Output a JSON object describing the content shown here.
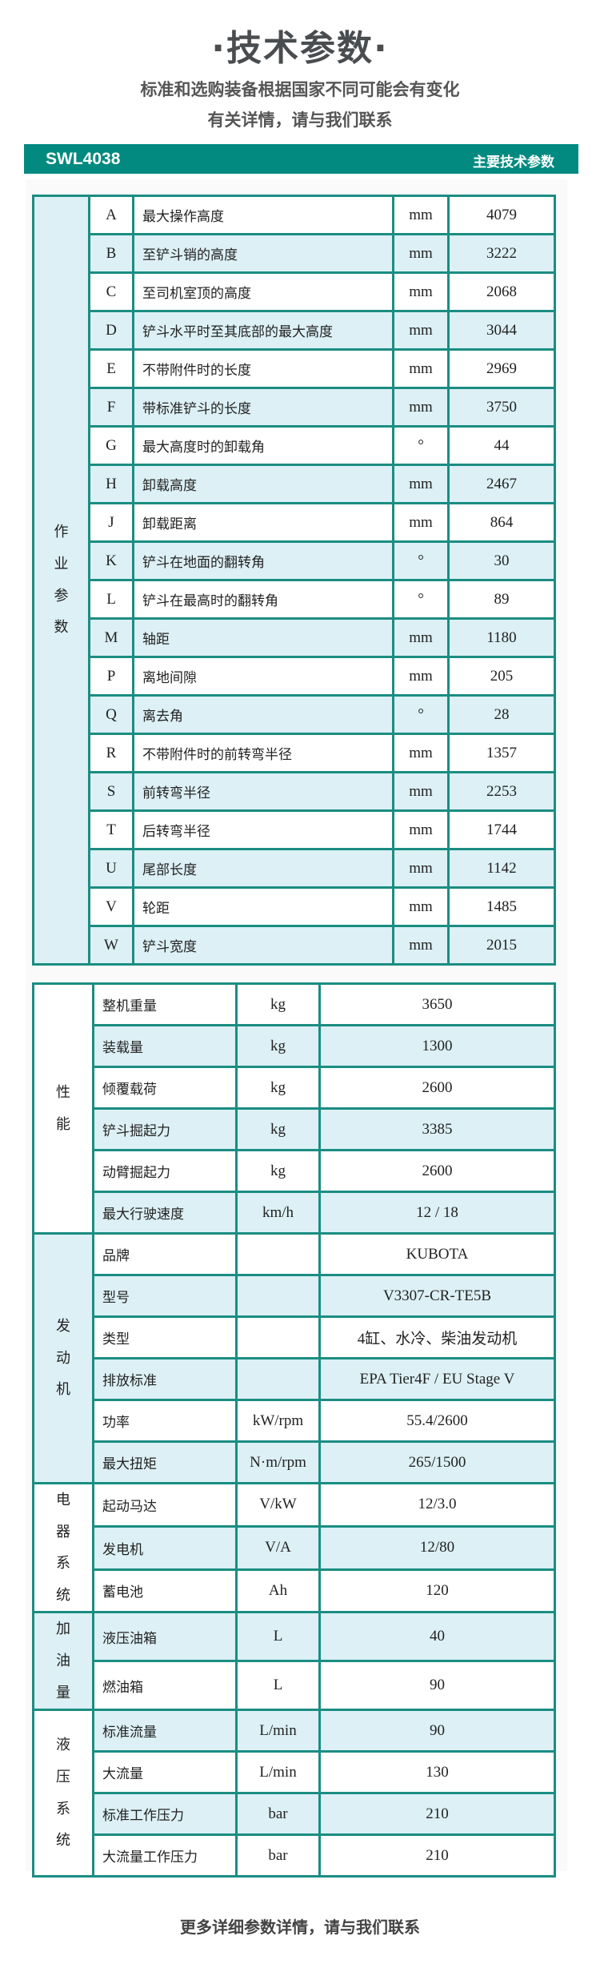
{
  "header": {
    "title": "·技术参数·",
    "subtitle_line1": "标准和选购装备根据国家不同可能会有变化",
    "subtitle_line2": "有关详情，请与我们联系"
  },
  "model_bar": {
    "model": "SWL4038",
    "label": "主要技术参数"
  },
  "colors": {
    "accent": "#038a80",
    "stripe": "#dcf0f5",
    "border": "#1b8d82"
  },
  "work_table": {
    "group": "作业参数",
    "rows": [
      {
        "code": "A",
        "name": "最大操作高度",
        "unit": "mm",
        "value": "4079"
      },
      {
        "code": "B",
        "name": "至铲斗销的高度",
        "unit": "mm",
        "value": "3222"
      },
      {
        "code": "C",
        "name": "至司机室顶的高度",
        "unit": "mm",
        "value": "2068"
      },
      {
        "code": "D",
        "name": "铲斗水平时至其底部的最大高度",
        "unit": "mm",
        "value": "3044"
      },
      {
        "code": "E",
        "name": "不带附件时的长度",
        "unit": "mm",
        "value": "2969"
      },
      {
        "code": "F",
        "name": "带标准铲斗的长度",
        "unit": "mm",
        "value": "3750"
      },
      {
        "code": "G",
        "name": "最大高度时的卸载角",
        "unit": "°",
        "value": "44"
      },
      {
        "code": "H",
        "name": "卸载高度",
        "unit": "mm",
        "value": "2467"
      },
      {
        "code": "J",
        "name": "卸载距离",
        "unit": "mm",
        "value": "864"
      },
      {
        "code": "K",
        "name": "铲斗在地面的翻转角",
        "unit": "°",
        "value": "30"
      },
      {
        "code": "L",
        "name": "铲斗在最高时的翻转角",
        "unit": "°",
        "value": "89"
      },
      {
        "code": "M",
        "name": "轴距",
        "unit": "mm",
        "value": "1180"
      },
      {
        "code": "P",
        "name": "离地间隙",
        "unit": "mm",
        "value": "205"
      },
      {
        "code": "Q",
        "name": "离去角",
        "unit": "°",
        "value": "28"
      },
      {
        "code": "R",
        "name": "不带附件时的前转弯半径",
        "unit": "mm",
        "value": "1357"
      },
      {
        "code": "S",
        "name": "前转弯半径",
        "unit": "mm",
        "value": "2253"
      },
      {
        "code": "T",
        "name": "后转弯半径",
        "unit": "mm",
        "value": "1744"
      },
      {
        "code": "U",
        "name": "尾部长度",
        "unit": "mm",
        "value": "1142"
      },
      {
        "code": "V",
        "name": "轮距",
        "unit": "mm",
        "value": "1485"
      },
      {
        "code": "W",
        "name": "铲斗宽度",
        "unit": "mm",
        "value": "2015"
      }
    ]
  },
  "spec_table": {
    "groups": [
      {
        "label": "性能",
        "tone": "white",
        "rows": [
          {
            "name": "整机重量",
            "unit": "kg",
            "value": "3650"
          },
          {
            "name": "装载量",
            "unit": "kg",
            "value": "1300"
          },
          {
            "name": "倾覆载荷",
            "unit": "kg",
            "value": "2600"
          },
          {
            "name": "铲斗掘起力",
            "unit": "kg",
            "value": "3385"
          },
          {
            "name": "动臂掘起力",
            "unit": "kg",
            "value": "2600"
          },
          {
            "name": "最大行驶速度",
            "unit": "km/h",
            "value": "12 / 18"
          }
        ]
      },
      {
        "label": "发动机",
        "tone": "blue",
        "rows": [
          {
            "name": "品牌",
            "unit": "",
            "value": "KUBOTA"
          },
          {
            "name": "型号",
            "unit": "",
            "value": "V3307-CR-TE5B"
          },
          {
            "name": "类型",
            "unit": "",
            "value": "4缸、水冷、柴油发动机"
          },
          {
            "name": "排放标准",
            "unit": "",
            "value": "EPA Tier4F / EU Stage V"
          },
          {
            "name": "功率",
            "unit": "kW/rpm",
            "value": "55.4/2600"
          },
          {
            "name": "最大扭矩",
            "unit": "N·m/rpm",
            "value": "265/1500"
          }
        ]
      },
      {
        "label": "电器系统",
        "tone": "white",
        "rows": [
          {
            "name": "起动马达",
            "unit": "V/kW",
            "value": "12/3.0"
          },
          {
            "name": "发电机",
            "unit": "V/A",
            "value": "12/80"
          },
          {
            "name": "蓄电池",
            "unit": "Ah",
            "value": "120"
          }
        ]
      },
      {
        "label": "加油量",
        "tone": "blue",
        "rows": [
          {
            "name": "液压油箱",
            "unit": "L",
            "value": "40"
          },
          {
            "name": "燃油箱",
            "unit": "L",
            "value": "90"
          }
        ]
      },
      {
        "label": "液压系统",
        "tone": "white",
        "rows": [
          {
            "name": "标准流量",
            "unit": "L/min",
            "value": "90"
          },
          {
            "name": "大流量",
            "unit": "L/min",
            "value": "130"
          },
          {
            "name": "标准工作压力",
            "unit": "bar",
            "value": "210"
          },
          {
            "name": "大流量工作压力",
            "unit": "bar",
            "value": "210"
          }
        ]
      }
    ]
  },
  "footer": {
    "text": "更多详细参数详情，请与我们联系"
  }
}
